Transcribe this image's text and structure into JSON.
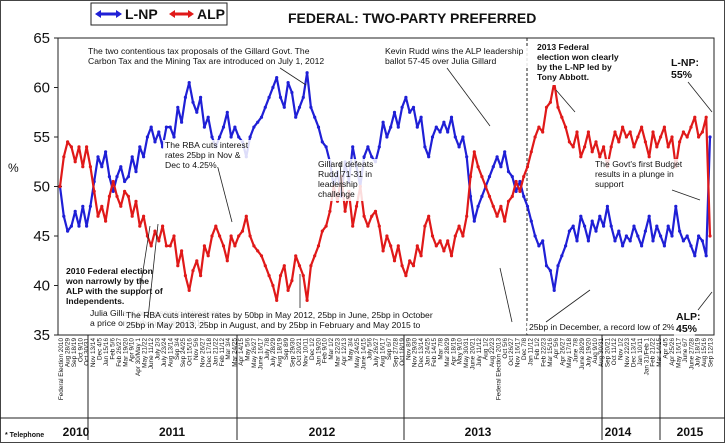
{
  "chart_data": {
    "type": "line",
    "title": "FEDERAL: TWO-PARTY PREFERRED",
    "ylabel": "%",
    "ylim": [
      35,
      65
    ],
    "yticks": [
      35,
      40,
      45,
      50,
      55,
      60,
      65
    ],
    "grid": false,
    "legend_position": "top-left",
    "series": [
      {
        "name": "L-NP",
        "color": "#1f1fd6",
        "values": [
          50,
          47,
          45.5,
          46,
          47.5,
          46,
          48,
          46,
          48,
          50.5,
          53,
          52,
          53.5,
          51,
          49.5,
          51,
          52,
          50.5,
          51,
          53,
          51.5,
          54,
          53,
          55,
          56,
          54.5,
          55.5,
          54,
          56,
          56,
          55,
          58,
          56.5,
          59,
          60.5,
          58.5,
          57.5,
          59,
          56,
          57,
          55,
          54,
          55,
          56,
          57.5,
          55,
          56,
          55,
          54.5,
          53,
          55,
          56,
          56.5,
          57,
          58,
          59,
          60,
          61,
          59,
          58,
          60.5,
          59.5,
          57,
          58,
          59,
          61.5,
          58,
          57,
          56,
          54.5,
          54,
          52.5,
          50,
          51.5,
          49,
          52.5,
          50.5,
          54,
          52,
          50,
          53,
          54,
          53,
          52.5,
          54,
          56.5,
          55,
          56,
          57.5,
          56,
          58,
          59,
          57.5,
          58,
          56,
          57,
          54,
          53,
          55,
          56,
          55.5,
          56.5,
          55.5,
          57,
          55,
          54,
          55,
          53,
          49,
          46.5,
          48,
          49,
          50,
          51,
          52,
          53,
          52,
          53.5,
          51.5,
          51,
          49.5,
          50.5,
          49,
          48,
          46.5,
          45,
          44,
          44.5,
          42,
          41.5,
          39.5,
          42,
          43,
          44,
          45.5,
          46,
          44.5,
          47,
          46,
          44.5,
          46.5,
          45.5,
          47,
          46,
          48,
          46,
          44.5,
          45.5,
          44,
          45,
          44.5,
          46,
          45,
          44,
          45.5,
          47,
          44.5,
          46,
          45,
          44,
          46,
          45,
          48,
          45.5,
          44.5,
          45,
          44,
          43,
          45,
          44.5,
          43,
          55
        ]
      },
      {
        "name": "ALP",
        "color": "#e01919",
        "values": [
          50,
          53,
          54.5,
          54,
          52.5,
          54,
          52,
          54,
          52,
          49.5,
          47,
          48,
          46.5,
          49,
          50.5,
          49,
          48,
          49.5,
          49,
          47,
          48.5,
          46,
          47,
          45,
          44,
          45.5,
          44.5,
          46,
          44,
          44,
          45,
          42,
          43.5,
          41,
          39.5,
          41.5,
          42.5,
          41,
          44,
          43,
          45,
          46,
          45,
          44,
          42.5,
          45,
          44,
          45,
          45.5,
          47,
          45,
          44,
          43.5,
          43,
          42,
          41,
          40,
          38.5,
          41,
          42,
          39.5,
          40.5,
          43,
          42,
          41,
          38.5,
          42,
          43,
          44,
          45.5,
          46,
          47.5,
          50,
          48.5,
          51,
          47.5,
          49.5,
          46,
          48,
          50,
          47,
          46,
          47,
          47.5,
          46,
          43.5,
          45,
          44,
          42.5,
          44,
          42,
          41,
          42.5,
          42,
          44,
          43,
          46,
          47,
          45,
          44,
          44.5,
          43.5,
          44.5,
          43,
          45,
          46,
          45,
          47,
          51,
          53.5,
          52,
          51,
          50,
          49,
          48,
          47,
          48,
          46.5,
          48.5,
          49,
          50.5,
          49.5,
          51,
          52,
          53.5,
          55,
          56,
          55.5,
          58,
          58.5,
          60.5,
          58,
          57,
          56,
          54.5,
          54,
          55.5,
          53,
          54,
          55.5,
          53.5,
          54.5,
          53,
          54,
          52,
          54,
          55.5,
          54.5,
          56,
          55,
          55.5,
          54,
          55,
          56,
          54.5,
          53,
          55.5,
          54,
          55,
          56,
          54,
          55,
          52,
          54.5,
          55.5,
          55,
          56,
          57,
          55,
          55.5,
          57,
          45
        ]
      }
    ],
    "year_labels": [
      "2010",
      "2011",
      "2012",
      "2013",
      "2014",
      "2015"
    ],
    "x_tick_labels": [
      "Federal Election 2010",
      "Aug 28/29",
      "Sep 18/19",
      "Oct 9/10",
      "Oct 30/31",
      "Nov 13/14",
      "Dec 4/5",
      "Jan 15/16",
      "Feb 5/6",
      "Feb 26/27",
      "Mar 19/20",
      "Apr 9/10",
      "Apr 30/May 1",
      "May 21/22",
      "June 11/12",
      "July 2/3",
      "July 23/24",
      "Aug 13/14",
      "Sep 3/4",
      "Sep 24/25",
      "Oct 15/16",
      "Nov 5/6",
      "Nov 26/27",
      "Dec 17/18",
      "Jan 21/22",
      "Feb 11/12",
      "Mar 3/4",
      "Mar 24/25",
      "Apr 14/15",
      "May 5/6",
      "May 26/27",
      "June 16/17",
      "July 7/8",
      "July 28/29",
      "Aug 18/19",
      "Sep 8/9",
      "Sep 29/30",
      "Oct 20/21",
      "Nov 10/11",
      "Dec 1/2",
      "Jan 19/20",
      "Feb 9/10",
      "Mar 1/2",
      "Mar 22/23",
      "Apr 12/13",
      "May 3/4",
      "May 24/25",
      "June 14/15",
      "July 5/6",
      "July 26/27",
      "Aug 16/17",
      "Sep 6/7",
      "Sep 27/28",
      "Oct 18/19",
      "Nov 8/9",
      "Nov 29/30",
      "Dec 13/14",
      "Jan 24/25",
      "Feb 14/15",
      "Mar 7/8",
      "Mar 28/29",
      "Apr 18/19",
      "May 9/10",
      "May 30/31",
      "June 20/21",
      "July 11/12",
      "Aug 1/2",
      "Aug 22/23",
      "Federal Election 2013",
      "Oct 5/6",
      "Oct 26/27",
      "Nov 16/17",
      "Dec 7/8",
      "Jan 11/12",
      "Feb 1/2",
      "Feb 22/23",
      "Mar 15/16",
      "Apr 5/6",
      "Apr 26/27",
      "May 17/18",
      "June 7/8",
      "June 28/29",
      "July 19/20",
      "Aug 9/10",
      "Aug 30/31",
      "Sep 20/21",
      "Oct 11/12",
      "Nov 1/2",
      "Nov 22/23",
      "Dec 13/14",
      "Jan 10/11",
      "Jan 31/Feb 1",
      "Feb 21/22",
      "Mar 14/15",
      "Apr 4/5",
      "Apr 25/26",
      "May 16/17",
      "June 6/7",
      "June 27/28",
      "July 18/19",
      "Aug 15/16",
      "Sep 12/13"
    ],
    "annotations": [
      {
        "id": "a1",
        "lines": [
          "The two contentious tax proposals of the Gillard Govt. The",
          "Carbon Tax and the Mining Tax are introduced on July 1, 2012"
        ],
        "bold": false
      },
      {
        "id": "a2",
        "lines": [
          "Kevin Rudd wins the ALP leadership",
          "ballot 57-45 over Julia Gillard"
        ],
        "bold": false
      },
      {
        "id": "a3",
        "lines": [
          "2013 Federal",
          "election won clearly",
          "by the L-NP led by",
          "Tony Abbott."
        ],
        "bold": true
      },
      {
        "id": "a4",
        "lines": [
          "L-NP:",
          "55%"
        ],
        "bold": true
      },
      {
        "id": "a5",
        "lines": [
          "The RBA cuts interest",
          "rates 25bp in Nov &",
          "Dec to 4.25%."
        ],
        "bold": false
      },
      {
        "id": "a6",
        "lines": [
          "Gillard defeats",
          "Rudd 71-31 in",
          "leadership",
          "challenge"
        ],
        "bold": false
      },
      {
        "id": "a7",
        "lines": [
          "The Govt's first Budget",
          "results in a plunge in",
          "support"
        ],
        "bold": false
      },
      {
        "id": "a8",
        "lines": [
          "2010 Federal election",
          "won narrowly by the",
          "ALP with the support of",
          "Independents."
        ],
        "bold": true
      },
      {
        "id": "a9",
        "lines": [
          "Julia Gillard proposes to introduce",
          "a price on carbon by mid 2012"
        ],
        "bold": false
      },
      {
        "id": "a10",
        "lines": [
          "The RBA cuts interest rates by 50bp in May 2012, 25bp in June, 25bp in October",
          "25bp in May 2013, 25bp in August, and by 25bp in February and May 2015 to"
        ],
        "bold": false
      },
      {
        "id": "a11",
        "lines": [
          "25bp in December, a record low of 2%"
        ],
        "bold": false
      },
      {
        "id": "a12",
        "lines": [
          "ALP:",
          "45%"
        ],
        "bold": true
      }
    ]
  },
  "legend": {
    "lnp": "L-NP",
    "alp": "ALP"
  },
  "footnote": "* Telephone"
}
